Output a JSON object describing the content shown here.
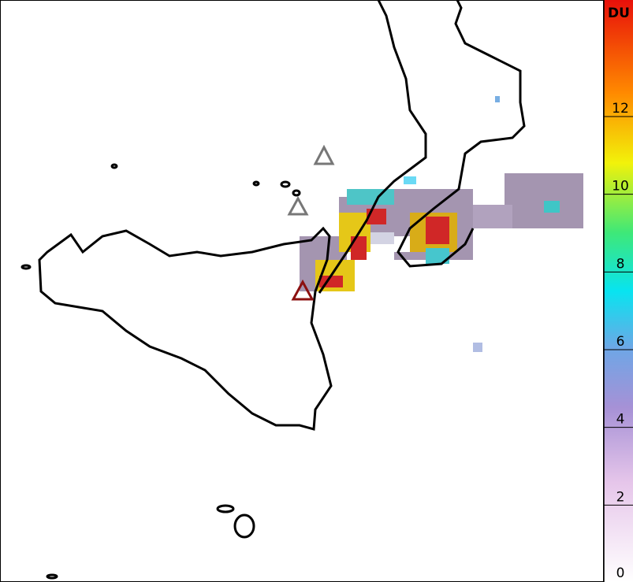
{
  "colorbar": {
    "label": "DU",
    "range": [
      0,
      15
    ],
    "ticks": [
      0,
      2,
      4,
      6,
      8,
      10,
      12
    ]
  }
}
